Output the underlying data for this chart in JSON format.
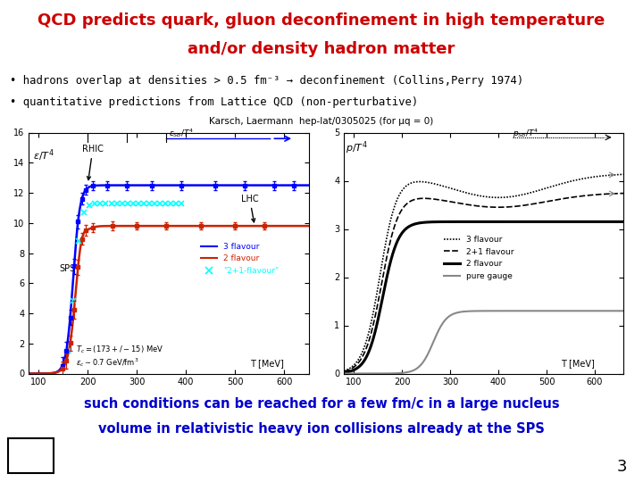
{
  "title_line1": "QCD predicts quark, gluon deconfinement in high temperature",
  "title_line2": "and/or density hadron matter",
  "title_color": "#cc0000",
  "bullet1": "• hadrons overlap at densities > 0.5 fm⁻³ → deconfinement (Collins,Perry 1974)",
  "bullet2": "• quantitative predictions from Lattice QCD (non-perturbative)",
  "ref_text": "Karsch, Laermann  hep-lat/0305025 (for μq = 0)",
  "bottom_text1": "such conditions can be reached for a few fm/c in a large nucleus",
  "bottom_text2": "volume in relativistic heavy ion collisions already at the SPS",
  "bottom_color": "#0000cc",
  "page_number": "3",
  "background_color": "#ffffff"
}
